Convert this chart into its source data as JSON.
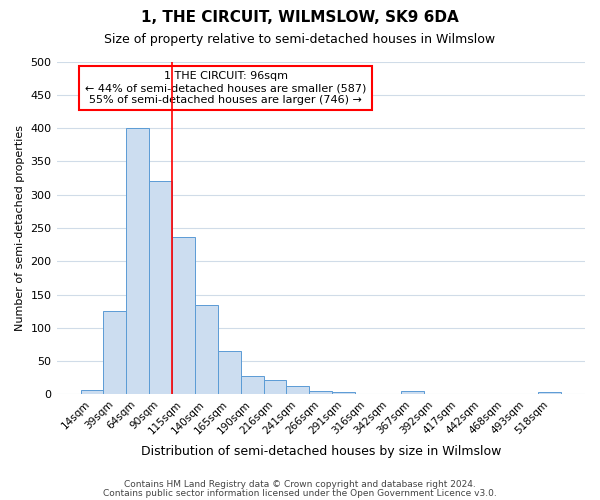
{
  "title": "1, THE CIRCUIT, WILMSLOW, SK9 6DA",
  "subtitle": "Size of property relative to semi-detached houses in Wilmslow",
  "xlabel": "Distribution of semi-detached houses by size in Wilmslow",
  "ylabel": "Number of semi-detached properties",
  "footer_line1": "Contains HM Land Registry data © Crown copyright and database right 2024.",
  "footer_line2": "Contains public sector information licensed under the Open Government Licence v3.0.",
  "annotation_line1": "1 THE CIRCUIT: 96sqm",
  "annotation_line2": "← 44% of semi-detached houses are smaller (587)",
  "annotation_line3": "55% of semi-detached houses are larger (746) →",
  "bar_categories": [
    "14sqm",
    "39sqm",
    "64sqm",
    "90sqm",
    "115sqm",
    "140sqm",
    "165sqm",
    "190sqm",
    "216sqm",
    "241sqm",
    "266sqm",
    "291sqm",
    "316sqm",
    "342sqm",
    "367sqm",
    "392sqm",
    "417sqm",
    "442sqm",
    "468sqm",
    "493sqm",
    "518sqm"
  ],
  "bar_values": [
    7,
    125,
    400,
    320,
    237,
    135,
    65,
    27,
    22,
    13,
    5,
    3,
    1,
    0,
    5,
    1,
    0,
    0,
    0,
    0,
    3
  ],
  "bar_color": "#ccddf0",
  "bar_edge_color": "#5b9bd5",
  "red_line_x": 3.5,
  "ylim": [
    0,
    500
  ],
  "yticks": [
    0,
    50,
    100,
    150,
    200,
    250,
    300,
    350,
    400,
    450,
    500
  ],
  "bg_color": "#ffffff",
  "plot_bg_color": "#ffffff",
  "grid_color": "#d0dce8"
}
